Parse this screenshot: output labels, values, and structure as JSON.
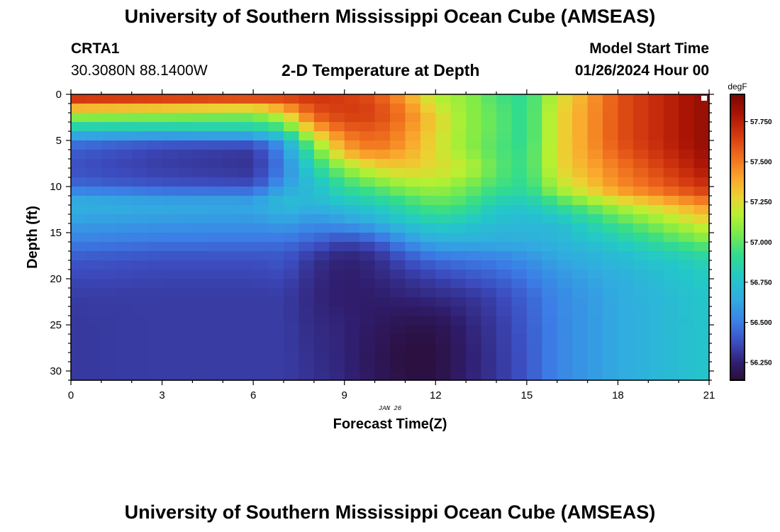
{
  "header": {
    "title": "University of Southern Mississippi Ocean Cube (AMSEAS)",
    "station_id": "CRTA1",
    "station_coords": "30.3080N  88.1400W",
    "plot_title": "2-D Temperature at Depth",
    "model_start_label": "Model Start Time",
    "model_start_value": "01/26/2024 Hour 00"
  },
  "footer": {
    "title": "University of Southern Mississippi Ocean Cube (AMSEAS)"
  },
  "chart_data": {
    "type": "heatmap",
    "title": "2-D Temperature at Depth",
    "xlabel": "Forecast Time(Z)",
    "ylabel": "Depth (ft)",
    "date_label": "JAN 26",
    "x_ticks": [
      0,
      3,
      6,
      9,
      12,
      15,
      18,
      21
    ],
    "y_ticks": [
      0,
      5,
      10,
      15,
      20,
      25,
      30
    ],
    "xlim": [
      0,
      21
    ],
    "ylim": [
      0,
      31
    ],
    "colorbar": {
      "unit": "degF",
      "min": 56.14,
      "max": 57.92,
      "ticks": [
        56.25,
        56.5,
        56.75,
        57.0,
        57.25,
        57.5,
        57.75
      ],
      "tick_labels": [
        "56.250",
        "56.500",
        "56.750",
        "57.000",
        "57.250",
        "57.500",
        "57.750"
      ]
    },
    "grid": {
      "times": [
        0,
        3,
        6,
        7,
        8,
        9,
        10,
        11,
        12,
        13,
        14,
        15,
        16,
        18,
        21
      ],
      "depths": [
        0,
        2,
        3,
        4,
        5,
        6,
        8,
        10,
        11,
        12,
        14,
        16,
        17,
        18,
        20,
        22,
        25,
        28,
        31
      ],
      "values": [
        [
          57.82,
          57.8,
          57.77,
          57.72,
          57.7,
          57.66,
          57.6,
          57.4,
          57.15,
          57.1,
          56.95,
          56.9,
          57.2,
          57.6,
          57.86
        ],
        [
          57.2,
          57.15,
          57.1,
          57.3,
          57.6,
          57.66,
          57.65,
          57.5,
          57.25,
          57.1,
          57.0,
          56.9,
          57.25,
          57.6,
          57.86
        ],
        [
          56.95,
          56.95,
          56.95,
          57.05,
          57.5,
          57.62,
          57.62,
          57.5,
          57.3,
          57.1,
          57.0,
          56.9,
          57.25,
          57.6,
          57.86
        ],
        [
          56.75,
          56.75,
          56.78,
          56.9,
          57.3,
          57.55,
          57.58,
          57.45,
          57.25,
          57.1,
          57.0,
          56.9,
          57.25,
          57.6,
          57.86
        ],
        [
          56.5,
          56.45,
          56.45,
          56.62,
          57.15,
          57.45,
          57.55,
          57.45,
          57.25,
          57.1,
          56.98,
          56.9,
          57.25,
          57.6,
          57.86
        ],
        [
          56.42,
          56.35,
          56.32,
          56.55,
          57.0,
          57.4,
          57.5,
          57.4,
          57.25,
          57.1,
          56.98,
          56.92,
          57.25,
          57.58,
          57.85
        ],
        [
          56.38,
          56.33,
          56.3,
          56.5,
          56.85,
          57.1,
          57.25,
          57.3,
          57.25,
          57.2,
          57.0,
          56.92,
          57.25,
          57.5,
          57.8
        ],
        [
          56.45,
          56.4,
          56.38,
          56.6,
          56.72,
          56.9,
          57.0,
          57.1,
          57.15,
          57.05,
          56.95,
          56.9,
          57.15,
          57.45,
          57.7
        ],
        [
          56.6,
          56.55,
          56.55,
          56.7,
          56.72,
          56.85,
          56.9,
          57.0,
          57.05,
          57.0,
          56.88,
          56.85,
          57.05,
          57.35,
          57.6
        ],
        [
          56.68,
          56.65,
          56.64,
          56.72,
          56.68,
          56.75,
          56.8,
          56.9,
          57.0,
          56.95,
          56.8,
          56.78,
          56.9,
          57.15,
          57.45
        ],
        [
          56.6,
          56.58,
          56.57,
          56.6,
          56.55,
          56.58,
          56.65,
          56.75,
          56.82,
          56.78,
          56.72,
          56.7,
          56.72,
          56.95,
          57.25
        ],
        [
          56.5,
          56.48,
          56.47,
          56.47,
          56.42,
          56.35,
          56.4,
          56.55,
          56.65,
          56.66,
          56.65,
          56.66,
          56.68,
          56.8,
          57.05
        ],
        [
          56.45,
          56.42,
          56.42,
          56.42,
          56.35,
          56.28,
          56.32,
          56.45,
          56.55,
          56.55,
          56.57,
          56.6,
          56.65,
          56.75,
          56.92
        ],
        [
          56.4,
          56.38,
          56.38,
          56.4,
          56.3,
          56.25,
          56.28,
          56.38,
          56.45,
          56.48,
          56.5,
          56.55,
          56.62,
          56.7,
          56.85
        ],
        [
          56.36,
          56.35,
          56.35,
          56.36,
          56.28,
          56.24,
          56.26,
          56.3,
          56.34,
          56.38,
          56.42,
          56.48,
          56.56,
          56.66,
          56.8
        ],
        [
          56.33,
          56.33,
          56.33,
          56.33,
          56.27,
          56.24,
          56.24,
          56.26,
          56.28,
          56.3,
          56.35,
          56.43,
          56.53,
          56.64,
          56.78
        ],
        [
          56.32,
          56.33,
          56.33,
          56.33,
          56.28,
          56.26,
          56.22,
          56.18,
          56.18,
          56.26,
          56.32,
          56.41,
          56.52,
          56.64,
          56.77
        ],
        [
          56.32,
          56.33,
          56.33,
          56.33,
          56.29,
          56.26,
          56.2,
          56.15,
          56.15,
          56.24,
          56.31,
          56.4,
          56.52,
          56.64,
          56.77
        ],
        [
          56.32,
          56.33,
          56.33,
          56.33,
          56.3,
          56.27,
          56.21,
          56.16,
          56.16,
          56.25,
          56.31,
          56.4,
          56.52,
          56.64,
          56.77
        ]
      ]
    }
  }
}
